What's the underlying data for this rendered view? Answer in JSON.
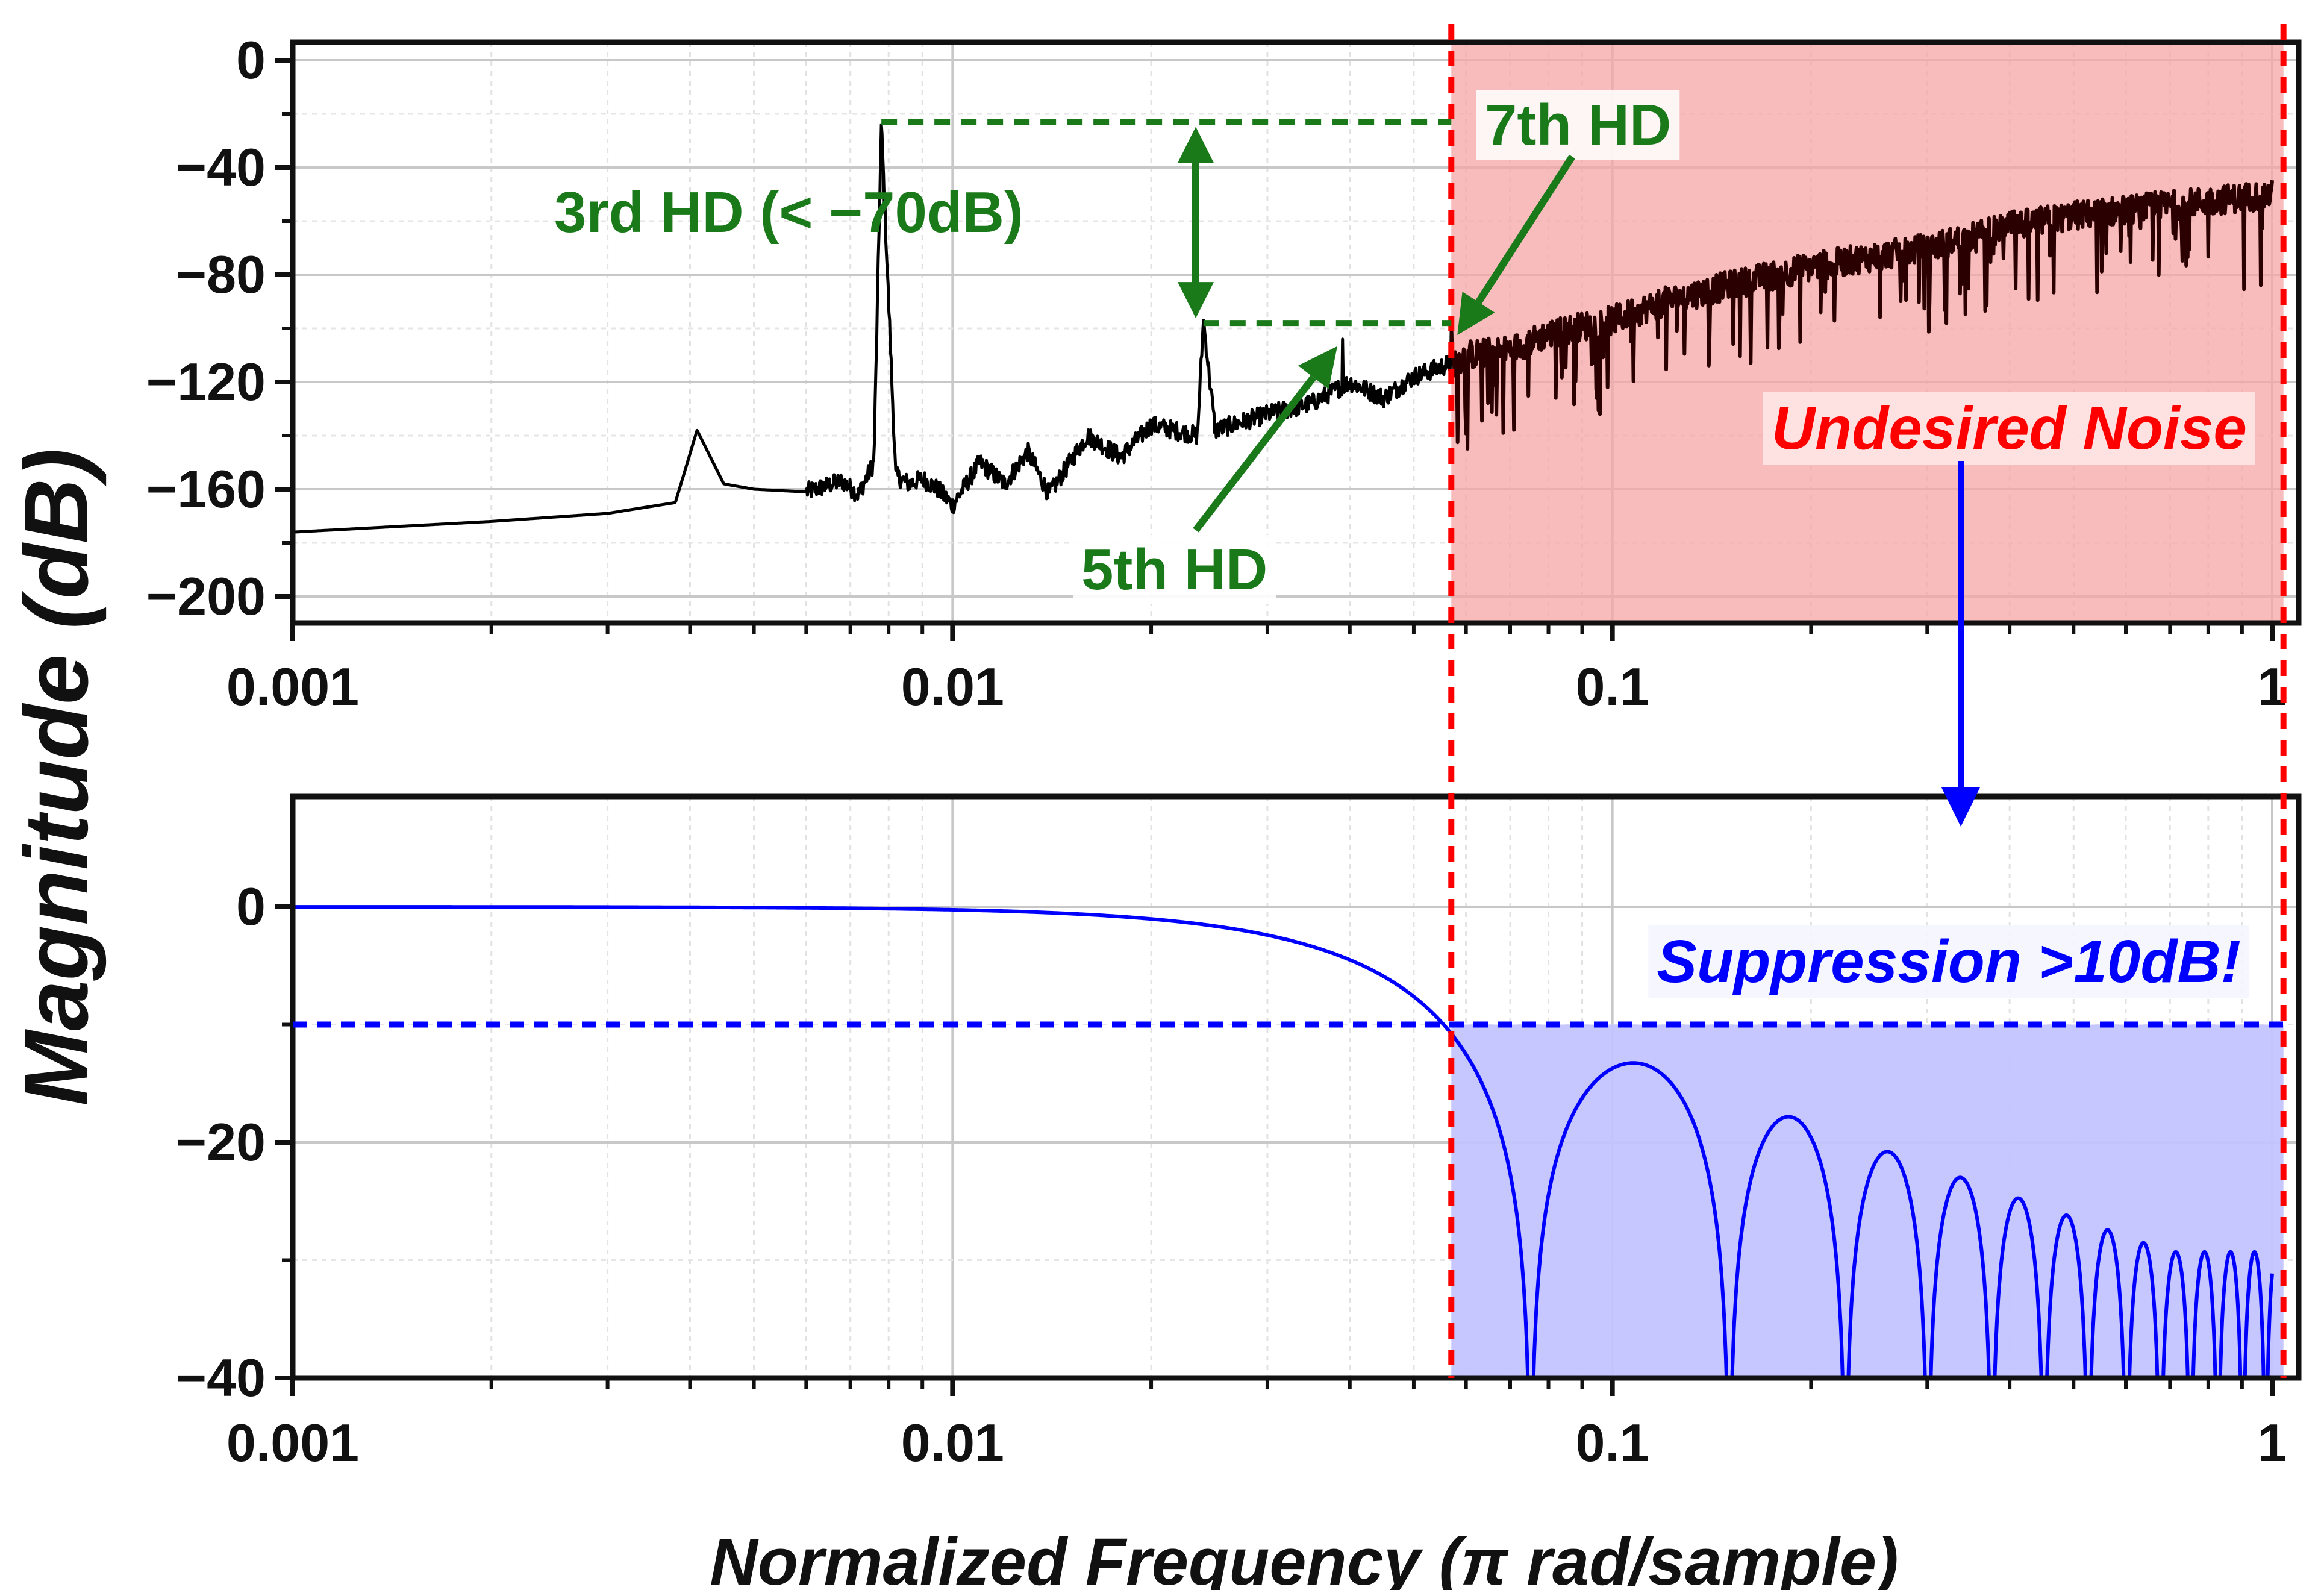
{
  "chart_data": [
    {
      "type": "line",
      "xscale": "log",
      "xlim": [
        0.001,
        1.1
      ],
      "ylim": [
        -210,
        8
      ],
      "x_ticks": [
        "0.001",
        "0.01",
        "0.1",
        "1"
      ],
      "y_ticks": [
        "0",
        "−40",
        "−80",
        "−120",
        "−160",
        "−200"
      ],
      "y_tick_values": [
        0,
        -40,
        -80,
        -120,
        -160,
        -200
      ],
      "grid": true,
      "series": [
        {
          "color": "#000000",
          "x": [
            0.001,
            0.002,
            0.003,
            0.0038,
            0.0041,
            0.0045,
            0.005,
            0.006,
            0.0068,
            0.0072,
            0.0076,
            0.0078,
            0.0082,
            0.0086,
            0.009,
            0.0095,
            0.01,
            0.011,
            0.012,
            0.013,
            0.014,
            0.016,
            0.018,
            0.02,
            0.0235,
            0.024,
            0.025,
            0.03,
            0.035,
            0.04,
            0.045,
            0.05,
            0.057,
            0.06,
            0.07,
            0.08,
            0.1,
            0.12,
            0.15,
            0.2,
            0.3,
            0.4,
            0.5,
            0.7,
            1.0
          ],
          "y": [
            -176,
            -172,
            -169,
            -165,
            -138,
            -158,
            -160,
            -161,
            -157,
            -162,
            -150,
            -24,
            -155,
            -158,
            -156,
            -160,
            -166,
            -150,
            -158,
            -146,
            -162,
            -140,
            -148,
            -136,
            -140,
            -97,
            -138,
            -132,
            -128,
            -120,
            -126,
            -118,
            -113,
            -110,
            -108,
            -102,
            -97,
            -90,
            -84,
            -77,
            -70,
            -62,
            -58,
            -54,
            -50
          ]
        }
      ],
      "region": {
        "x_start": 0.057,
        "x_end": 1.04,
        "color": "#f6a5a5"
      },
      "annotations": [
        {
          "text": "3rd HD (< −70dB)",
          "color": "#1a7a1a",
          "x": 0.0078,
          "y": -24
        },
        {
          "text": "5th HD",
          "color": "#1a7a1a",
          "x": 0.039,
          "y": -104
        },
        {
          "text": "7th HD",
          "color": "#1a7a1a",
          "x": 0.057,
          "y": -98
        },
        {
          "text": "Undesired Noise",
          "color": "#ff0000"
        }
      ],
      "reference_lines": [
        {
          "type": "h",
          "y": -23,
          "x_from": 0.0078,
          "x_to": 0.057,
          "color": "#1a7a1a",
          "style": "dashed"
        },
        {
          "type": "h",
          "y": -98,
          "x_from": 0.024,
          "x_to": 0.057,
          "color": "#1a7a1a",
          "style": "dashed"
        }
      ]
    },
    {
      "type": "line",
      "xscale": "log",
      "xlim": [
        0.001,
        1.1
      ],
      "ylim": [
        -40,
        10
      ],
      "x_ticks": [
        "0.001",
        "0.01",
        "0.1",
        "1"
      ],
      "y_ticks": [
        "0",
        "−20",
        "−40"
      ],
      "y_tick_values": [
        0,
        -20,
        -40
      ],
      "grid": true,
      "series": [
        {
          "color": "#0000ff",
          "description": "sinc-shaped low-pass response, main lobe crossing -10 dB at 0.057",
          "main_lobe_cutoff": 0.057,
          "first_null": 0.075,
          "sidelobe_peaks_db": [
            -13.3,
            -18,
            -21,
            -23.5,
            -25,
            -26.5,
            -27.5,
            -28,
            -28.5,
            -29,
            -29,
            -29.2,
            -29.3,
            -29.3
          ]
        }
      ],
      "region": {
        "x_start": 0.057,
        "x_end": 1.04,
        "y_from": -10,
        "color": "#c4c4ff"
      },
      "reference_lines": [
        {
          "type": "h",
          "y": -10,
          "x_from": 0.001,
          "x_to": 1.04,
          "color": "#0000ff",
          "style": "dashed"
        }
      ],
      "annotations": [
        {
          "text": "Suppression >10dB!",
          "color": "#0000ff"
        }
      ]
    }
  ],
  "labels": {
    "ylabel": "Magnitude (dB)",
    "xlabel": "Normalized Frequency (π rad/sample)",
    "ann_3rd": "3rd HD (< −70dB)",
    "ann_5th": "5th HD",
    "ann_7th": "7th HD",
    "ann_noise": "Undesired Noise",
    "ann_supp": "Suppression >10dB!"
  },
  "colors": {
    "green": "#1a7a1a",
    "red": "#ff0000",
    "blue": "#0000ff",
    "red_fill": "#f6a5a5",
    "blue_fill": "#c4c4ff"
  }
}
